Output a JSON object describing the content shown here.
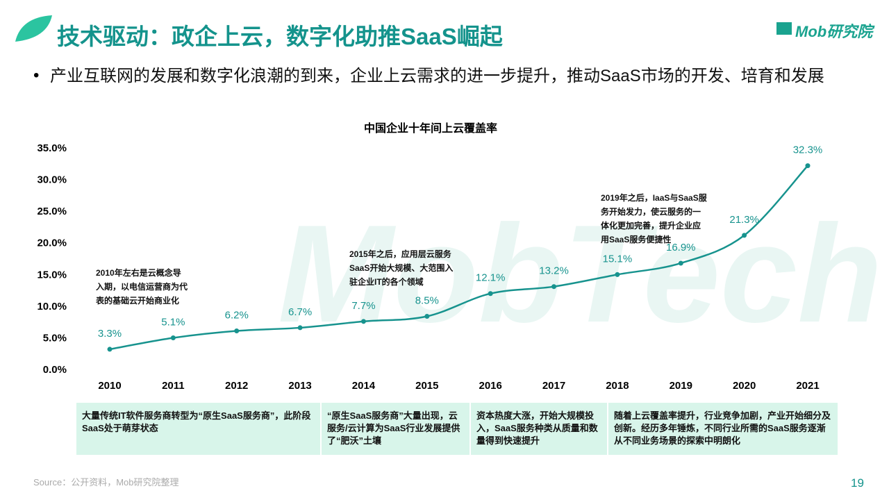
{
  "header": {
    "title": "技术驱动：政企上云，数字化助推SaaS崛起",
    "logo": "Mob研究院"
  },
  "bullet": "产业互联网的发展和数字化浪潮的到来，企业上云需求的进一步提升，推动SaaS市场的开发、培育和发展",
  "chart_data": {
    "type": "line",
    "title": "中国企业十年间上云覆盖率",
    "categories": [
      "2010",
      "2011",
      "2012",
      "2013",
      "2014",
      "2015",
      "2016",
      "2017",
      "2018",
      "2019",
      "2020",
      "2021"
    ],
    "series": [
      {
        "name": "上云覆盖率",
        "color": "#17938e",
        "values": [
          3.3,
          5.1,
          6.2,
          6.7,
          7.7,
          8.5,
          12.1,
          13.2,
          15.1,
          16.9,
          21.3,
          32.3
        ],
        "value_labels": [
          "3.3%",
          "5.1%",
          "6.2%",
          "6.7%",
          "7.7%",
          "8.5%",
          "12.1%",
          "13.2%",
          "15.1%",
          "16.9%",
          "21.3%",
          "32.3%"
        ]
      }
    ],
    "ylim": [
      0,
      35
    ],
    "yticks": [
      {
        "value": 0,
        "label": "0.0%"
      },
      {
        "value": 5,
        "label": "5.0%"
      },
      {
        "value": 10,
        "label": "10.0%"
      },
      {
        "value": 15,
        "label": "15.0%"
      },
      {
        "value": 20,
        "label": "20.0%"
      },
      {
        "value": 25,
        "label": "25.0%"
      },
      {
        "value": 30,
        "label": "30.0%"
      },
      {
        "value": 35,
        "label": "35.0%"
      }
    ],
    "grid": false,
    "annotations": [
      {
        "lines": [
          "2010年左右是云概念导",
          "入期，以电信运营商为代",
          "表的基础云开始商业化"
        ]
      },
      {
        "lines": [
          "2015年之后，应用层云服务",
          "SaaS开始大规模、大范围入",
          "驻企业IT的各个领域"
        ]
      },
      {
        "lines": [
          "2019年之后，IaaS与SaaS服",
          "务开始发力，使云服务的一",
          "体化更加完善，提升企业应",
          "用SaaS服务便捷性"
        ]
      }
    ]
  },
  "phases": [
    "大量传统IT软件服务商转型为“原生SaaS服务商”，此阶段SaaS处于萌芽状态",
    "“原生SaaS服务商”大量出现，云服务/云计算为SaaS行业发展提供了“肥沃”土壤",
    "资本热度大涨，开始大规模投入，SaaS服务种类从质量和数量得到快速提升",
    "随着上云覆盖率提升，行业竞争加剧，产业开始细分及创新。经历多年锤炼，不同行业所需的SaaS服务逐渐从不同业务场景的探索中明朗化"
  ],
  "watermark": "MobTech",
  "source": "Source：公开资料，Mob研究院整理",
  "page_number": "19"
}
